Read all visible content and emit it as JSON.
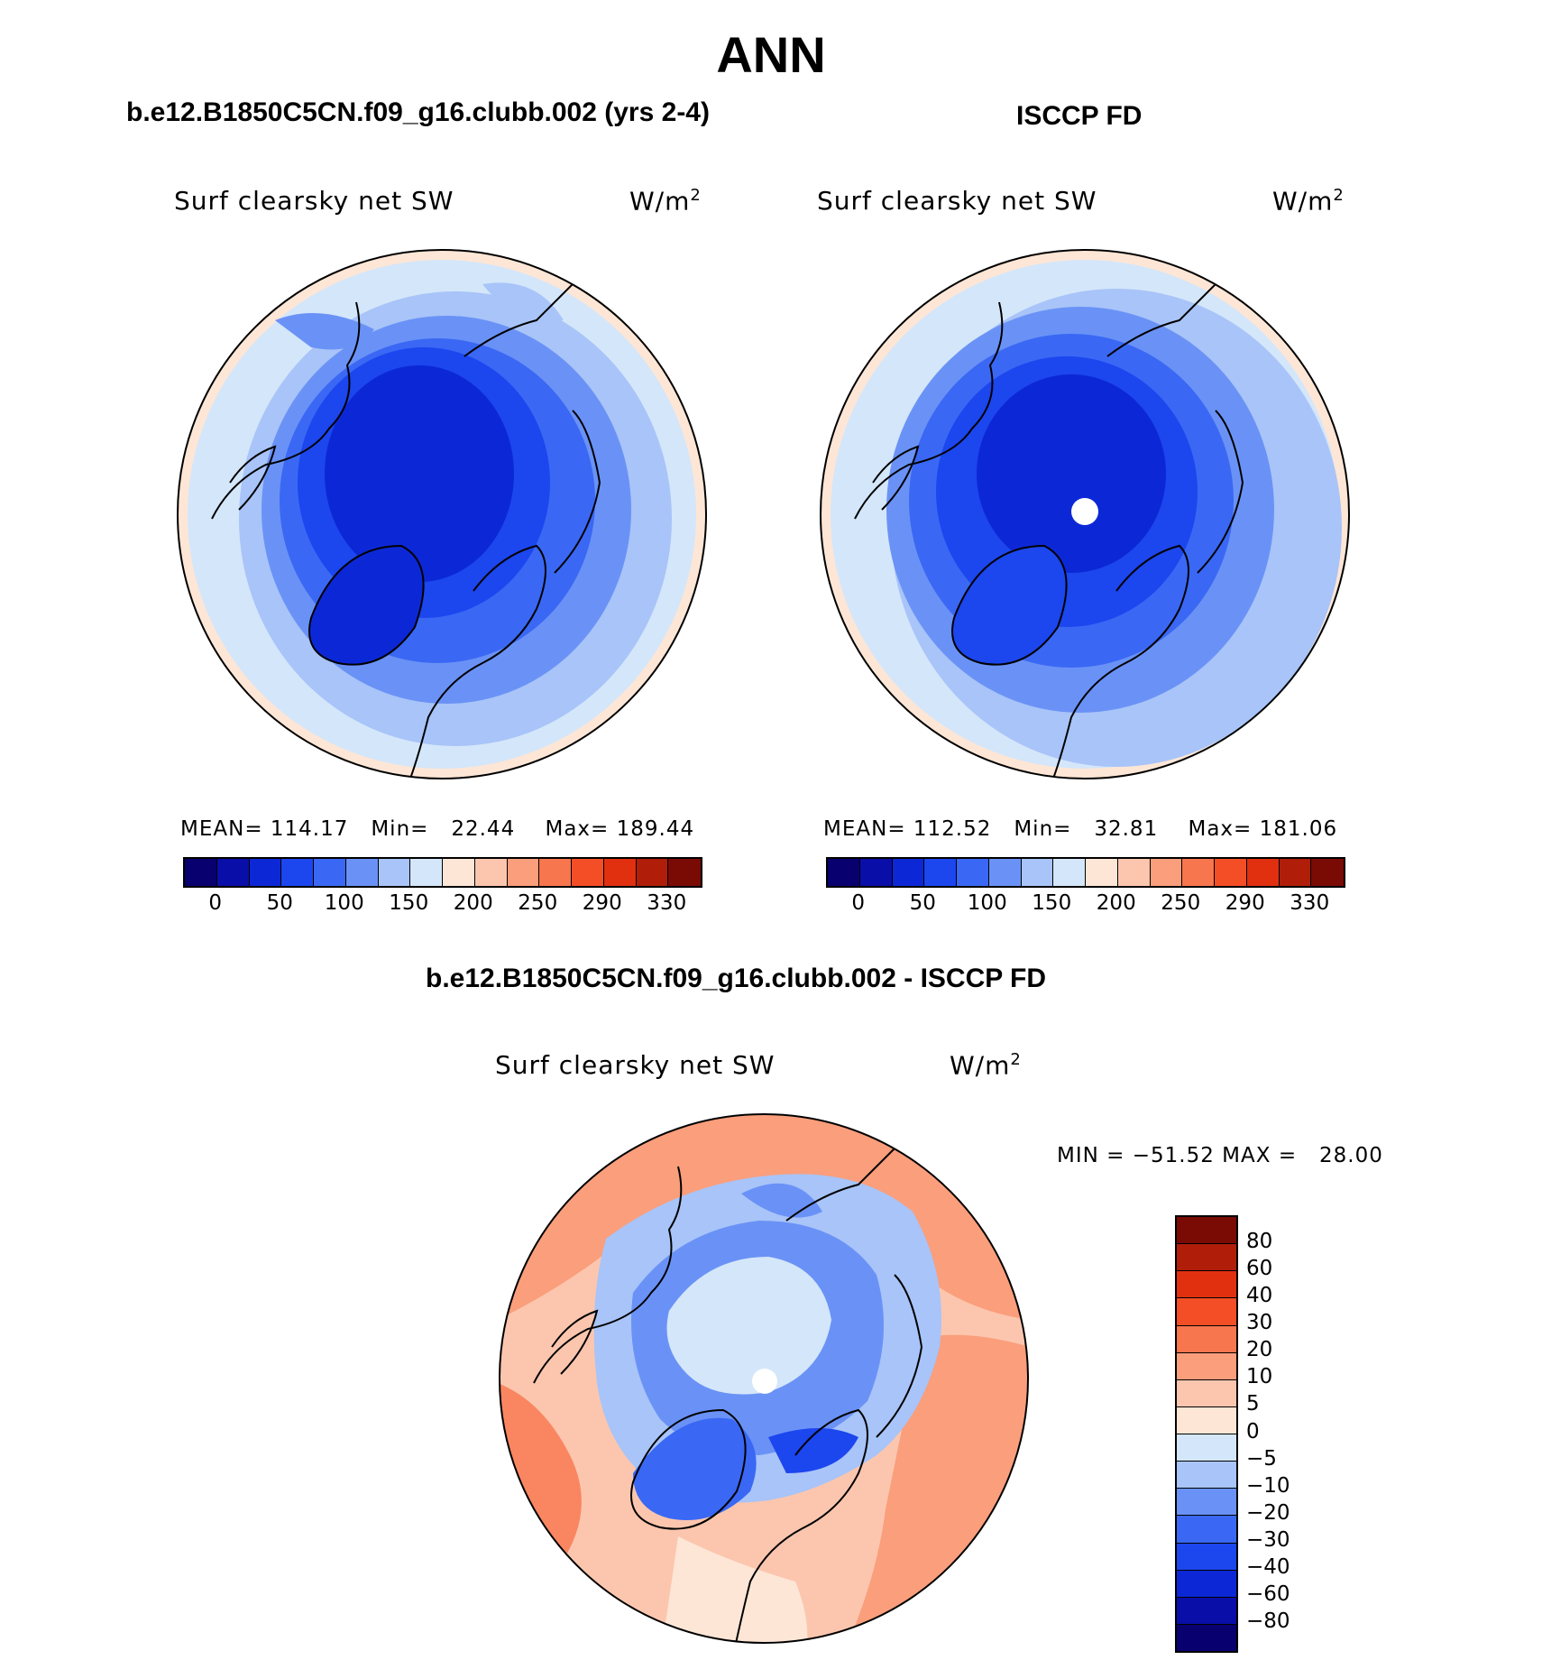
{
  "page_title": "ANN",
  "panels": [
    {
      "heading": "b.e12.B1850C5CN.f09_g16.clubb.002 (yrs 2-4)",
      "variable": "Surf clearsky net SW",
      "units": "W/m",
      "units_sup": "2",
      "stats": {
        "mean_label": "MEAN=",
        "mean": "114.17",
        "min_label": "Min=",
        "min": "22.44",
        "max_label": "Max=",
        "max": "189.44"
      },
      "has_pole_hole": false
    },
    {
      "heading": "ISCCP FD",
      "variable": "Surf clearsky net SW",
      "units": "W/m",
      "units_sup": "2",
      "stats": {
        "mean_label": "MEAN=",
        "mean": "112.52",
        "min_label": "Min=",
        "min": "32.81",
        "max_label": "Max=",
        "max": "181.06"
      },
      "has_pole_hole": true
    }
  ],
  "abs_colorbar": {
    "colors": [
      "#08006e",
      "#0a0ea8",
      "#0c28d6",
      "#1c46ee",
      "#3a68f4",
      "#6a92f6",
      "#a8c4f8",
      "#d4e6fa",
      "#fde6d6",
      "#fcc6ae",
      "#fa9e7c",
      "#f8764e",
      "#f44e26",
      "#e03010",
      "#b01e0a",
      "#7a0a04"
    ],
    "tick_labels": [
      "0",
      "50",
      "100",
      "150",
      "200",
      "250",
      "290",
      "330"
    ]
  },
  "diff_panel": {
    "heading": "b.e12.B1850C5CN.f09_g16.clubb.002 - ISCCP FD",
    "variable": "Surf clearsky net SW",
    "units": "W/m",
    "units_sup": "2",
    "stats": {
      "min_label": "MIN =",
      "min": "−51.52",
      "max_label": "MAX =",
      "max": "28.00"
    }
  },
  "diff_colorbar": {
    "colors": [
      "#7a0a04",
      "#b01e0a",
      "#e03010",
      "#f44e26",
      "#f8764e",
      "#fa9e7c",
      "#fcc6ae",
      "#fde6d6",
      "#d4e6fa",
      "#a8c4f8",
      "#6a92f6",
      "#3a68f4",
      "#1c46ee",
      "#0c28d6",
      "#0a0ea8",
      "#08006e"
    ],
    "tick_labels": [
      "80",
      "60",
      "40",
      "30",
      "20",
      "10",
      "5",
      "0",
      "−5",
      "−10",
      "−20",
      "−30",
      "−40",
      "−60",
      "−80"
    ]
  }
}
